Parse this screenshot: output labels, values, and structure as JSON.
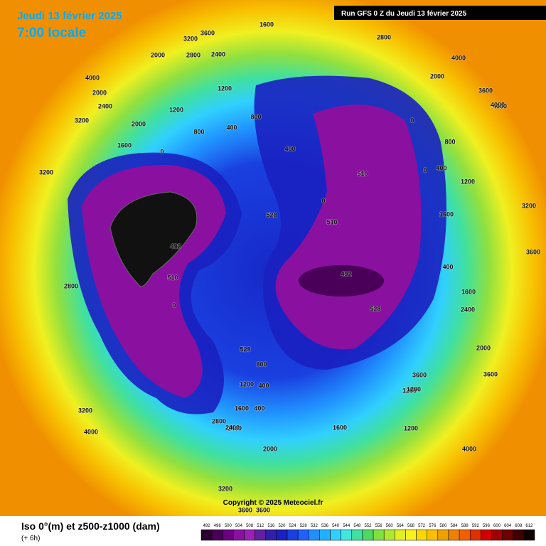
{
  "header": {
    "date": "Jeudi 13 février 2025",
    "time": "7:00 locale",
    "run": "Run GFS 0 Z du Jeudi 13 février 2025"
  },
  "footer": {
    "title": "Iso 0°(m) et z500-z1000 (dam)",
    "lead": "(+ 6h)",
    "copyright": "Copyright © 2025 Meteociel.fr"
  },
  "map": {
    "labels": [
      "1600",
      "3600",
      "3200",
      "2800",
      "2400",
      "2000",
      "4000",
      "2400",
      "2000",
      "3200",
      "1200",
      "800",
      "400",
      "0",
      "1600",
      "3200",
      "2800",
      "4000",
      "4000",
      "3600",
      "2000",
      "492",
      "510",
      "528",
      "510",
      "492",
      "510",
      "0",
      "400",
      "800",
      "1200",
      "1600",
      "400",
      "0",
      "1600",
      "2400",
      "2000",
      "3200",
      "3600",
      "1200",
      "800",
      "400",
      "0",
      "528",
      "1600",
      "1200",
      "3600",
      "4000",
      "4000",
      "3200",
      "3600",
      "1200",
      "2000",
      "400",
      "1200",
      "800",
      "4000",
      "3600",
      "2800",
      "2400",
      "528",
      "2000",
      "0",
      "400",
      "1200",
      "2400",
      "3600",
      "3200",
      "2800",
      "1600"
    ]
  },
  "colorbar": {
    "labels": [
      492,
      496,
      500,
      504,
      508,
      512,
      516,
      520,
      524,
      528,
      532,
      536,
      540,
      544,
      548,
      552,
      556,
      560,
      564,
      568,
      572,
      576,
      580,
      584,
      588,
      592,
      596,
      600,
      604,
      608,
      612
    ],
    "colors": [
      "#2a0030",
      "#4a0058",
      "#6a0080",
      "#8a10a0",
      "#9a20b8",
      "#6020a0",
      "#3020a8",
      "#1a20c0",
      "#1a40e0",
      "#2060ff",
      "#2090ff",
      "#20b0ff",
      "#30d0ff",
      "#40e8e0",
      "#40e0a0",
      "#50d860",
      "#80e040",
      "#b0e830",
      "#e0f020",
      "#f8f020",
      "#f8d800",
      "#f8c000",
      "#f0a000",
      "#f08000",
      "#f06000",
      "#e03000",
      "#d00000",
      "#a00000",
      "#700000",
      "#400000",
      "#100000"
    ]
  }
}
